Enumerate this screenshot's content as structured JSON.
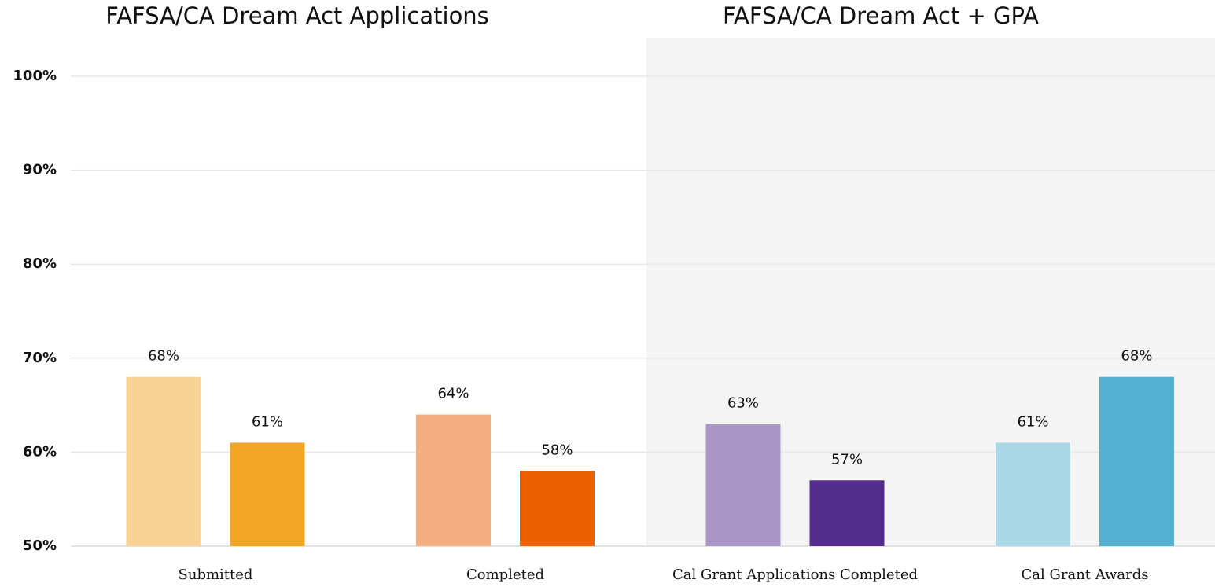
{
  "chart_data": {
    "type": "grouped_bar",
    "titles": [
      "FAFSA/CA Dream Act Applications",
      "FAFSA/CA Dream Act + GPA"
    ],
    "categories": [
      "Submitted",
      "Completed",
      "Cal Grant Applications Completed",
      "Cal Grant Awards"
    ],
    "values": [
      [
        68,
        61
      ],
      [
        64,
        58
      ],
      [
        63,
        57
      ],
      [
        61,
        68
      ]
    ],
    "value_labels": [
      [
        "68%",
        "61%"
      ],
      [
        "64%",
        "58%"
      ],
      [
        "63%",
        "57%"
      ],
      [
        "61%",
        "68%"
      ]
    ],
    "colors": [
      [
        "#f8d194",
        "#f2a628"
      ],
      [
        "#f5ae82",
        "#eb6000"
      ],
      [
        "#aa97c6",
        "#532c8d"
      ],
      [
        "#aad8e6",
        "#53b0ce"
      ]
    ],
    "ylim": [
      50,
      100
    ],
    "yticks": [
      {
        "value": 50,
        "label": "50%"
      },
      {
        "value": 60,
        "label": "60%"
      },
      {
        "value": 70,
        "label": "70%"
      },
      {
        "value": 80,
        "label": "80%"
      },
      {
        "value": 90,
        "label": "90%"
      },
      {
        "value": 100,
        "label": "100%"
      }
    ],
    "grid": true
  }
}
